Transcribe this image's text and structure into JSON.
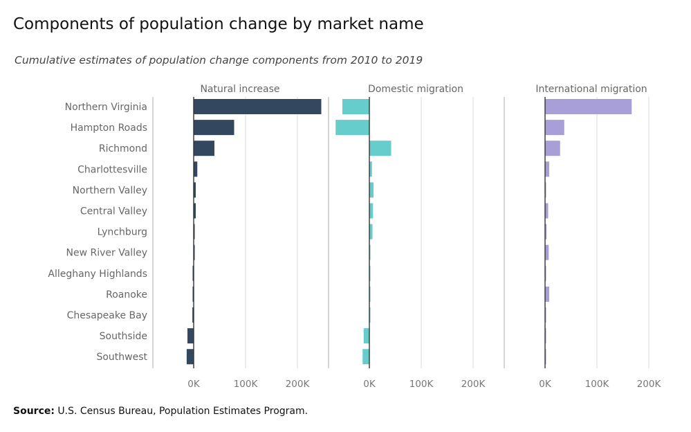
{
  "title": "Components of population change by market name",
  "subtitle": "Cumulative estimates of population change components from 2010 to 2019",
  "source_label": "Source:",
  "source_text": "U.S. Census Bureau, Population Estimates Program.",
  "chart_data": {
    "type": "bar",
    "orientation": "horizontal",
    "categories": [
      "Northern Virginia",
      "Hampton Roads",
      "Richmond",
      "Charlottesville",
      "Northern Valley",
      "Central Valley",
      "Lynchburg",
      "New River Valley",
      "Alleghany Highlands",
      "Roanoke",
      "Chesapeake Bay",
      "Southside",
      "Southwest"
    ],
    "panels": [
      {
        "name": "Natural increase",
        "color": "#33475f",
        "values": [
          246000,
          78000,
          40000,
          7000,
          4000,
          4000,
          1000,
          1000,
          -500,
          -500,
          -2500,
          -12000,
          -13500
        ],
        "xlim": [
          -80000,
          260000
        ]
      },
      {
        "name": "Domestic migration",
        "color": "#66cccc",
        "values": [
          -52000,
          -65000,
          42000,
          5000,
          8000,
          7000,
          6000,
          1000,
          500,
          500,
          1000,
          -11000,
          -13000
        ],
        "xlim": [
          -80000,
          260000
        ]
      },
      {
        "name": "International migration",
        "color": "#a89fd8",
        "values": [
          167000,
          37000,
          29000,
          8000,
          2000,
          6000,
          3000,
          7000,
          500,
          8000,
          1000,
          1000,
          1000
        ],
        "xlim": [
          -80000,
          260000
        ]
      }
    ],
    "x_ticks": [
      0,
      100000,
      200000
    ],
    "x_tick_labels": [
      "0K",
      "100K",
      "200K"
    ],
    "grid": true
  }
}
